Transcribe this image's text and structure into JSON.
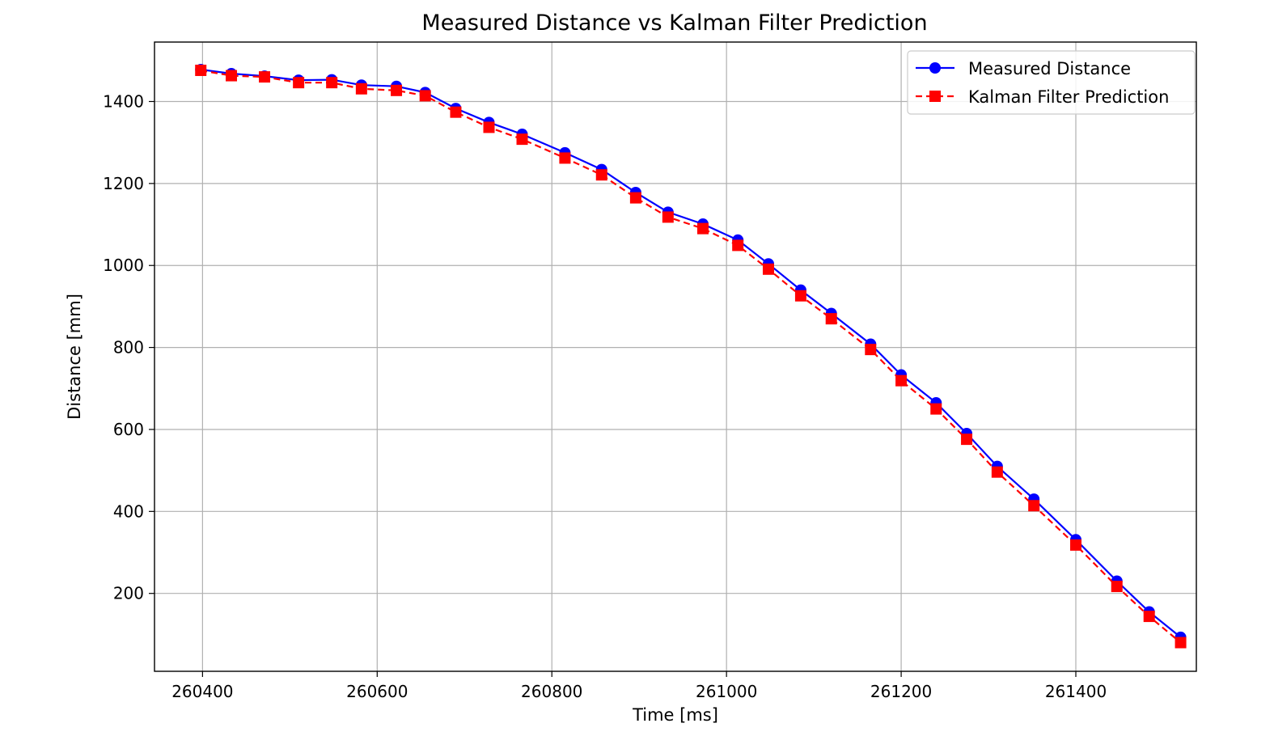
{
  "chart_data": {
    "type": "line",
    "title": "Measured Distance vs Kalman Filter Prediction",
    "xlabel": "Time [ms]",
    "ylabel": "Distance [mm]",
    "xlim": [
      260345,
      261538
    ],
    "ylim": [
      10,
      1545
    ],
    "xticks": [
      260400,
      260600,
      260800,
      261000,
      261200,
      261400
    ],
    "yticks": [
      200,
      400,
      600,
      800,
      1000,
      1200,
      1400
    ],
    "grid": true,
    "legend_position": "top-right",
    "x": [
      260398,
      260433,
      260471,
      260510,
      260548,
      260582,
      260622,
      260655,
      260690,
      260728,
      260766,
      260815,
      260857,
      260896,
      260933,
      260973,
      261013,
      261048,
      261085,
      261120,
      261165,
      261200,
      261240,
      261275,
      261310,
      261352,
      261400,
      261447,
      261484,
      261520
    ],
    "series": [
      {
        "name": "Measured Distance",
        "color": "#0000ff",
        "line_style": "solid",
        "marker": "circle",
        "values": [
          1478,
          1468,
          1462,
          1452,
          1453,
          1440,
          1437,
          1422,
          1383,
          1349,
          1320,
          1275,
          1234,
          1178,
          1130,
          1101,
          1062,
          1004,
          940,
          883,
          808,
          733,
          665,
          590,
          510,
          430,
          331,
          230,
          155,
          93
        ]
      },
      {
        "name": "Kalman Filter Prediction",
        "color": "#ff0000",
        "line_style": "dashed",
        "marker": "square",
        "values": [
          1476,
          1463,
          1460,
          1446,
          1446,
          1431,
          1427,
          1414,
          1374,
          1337,
          1308,
          1262,
          1221,
          1165,
          1118,
          1090,
          1049,
          991,
          926,
          870,
          795,
          719,
          650,
          576,
          496,
          414,
          318,
          217,
          144,
          80
        ]
      }
    ]
  }
}
